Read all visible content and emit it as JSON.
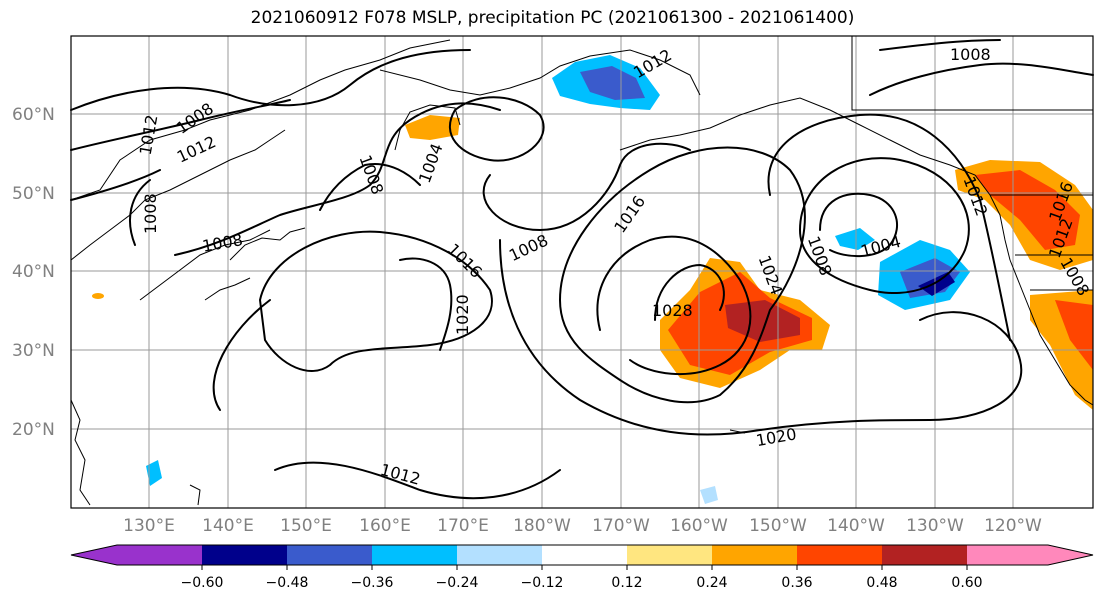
{
  "title": "2021060912 F078 MSLP, precipitation PC (2021061300 - 2021061400)",
  "lat_labels": [
    "60°N",
    "50°N",
    "40°N",
    "30°N",
    "20°N"
  ],
  "lon_labels": [
    "130°E",
    "140°E",
    "150°E",
    "160°E",
    "170°E",
    "180°W",
    "170°W",
    "160°W",
    "150°W",
    "140°W",
    "130°W",
    "120°W"
  ],
  "colorbar": {
    "ticks": [
      "−0.60",
      "−0.48",
      "−0.36",
      "−0.24",
      "−0.12",
      "0.12",
      "0.24",
      "0.36",
      "0.48",
      "0.60"
    ],
    "colors": [
      "#9932cc",
      "#00008b",
      "#3a5bcc",
      "#00bfff",
      "#b3e0ff",
      "#ffffff",
      "#ffe680",
      "#ffa500",
      "#ff4500",
      "#b22222",
      "#ff88bb"
    ]
  },
  "isobar_labels": [
    "1008",
    "1012",
    "1008",
    "1012",
    "1004",
    "1008",
    "1008",
    "1008",
    "1016",
    "1020",
    "1008",
    "1016",
    "1028",
    "1024",
    "1020",
    "1012",
    "1012",
    "1008",
    "1004",
    "1012",
    "1012",
    "1008",
    "1016"
  ]
}
